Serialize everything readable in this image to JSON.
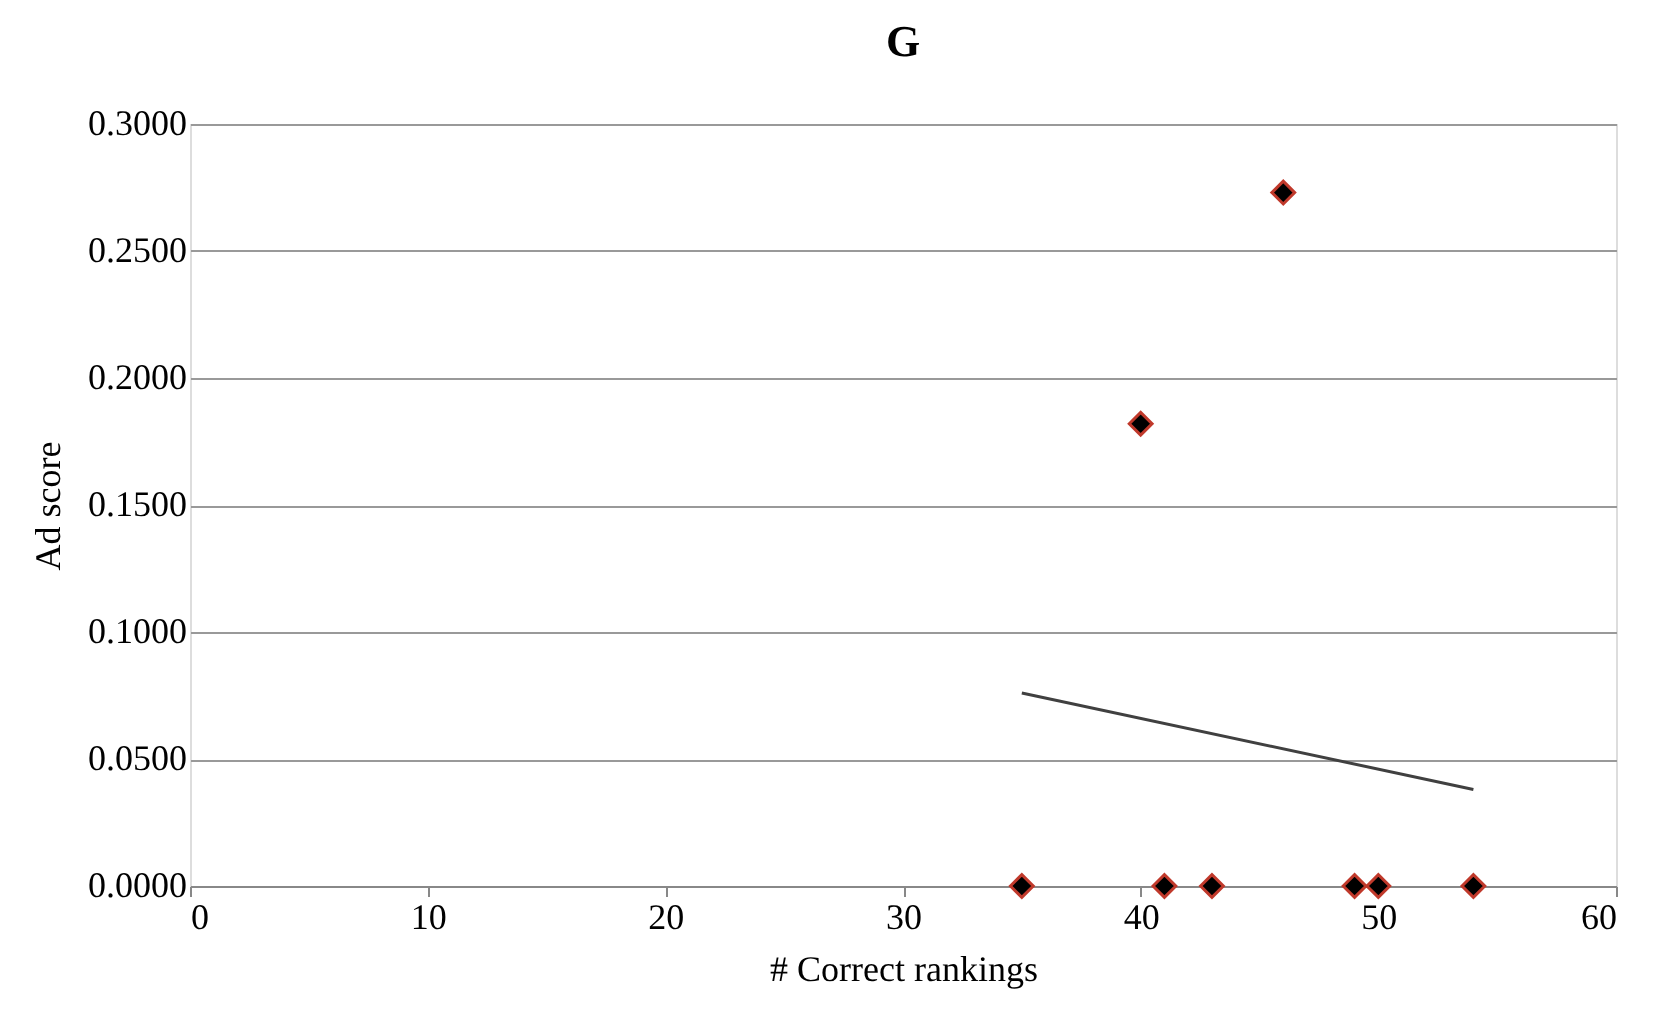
{
  "chart_data": {
    "type": "scatter",
    "title": "G",
    "xlabel": "# Correct rankings",
    "ylabel": "Ad score",
    "xlim": [
      0,
      60
    ],
    "xticks": [
      0,
      10,
      20,
      30,
      40,
      50,
      60
    ],
    "ylim": [
      0,
      0.3
    ],
    "yticks": [
      {
        "value": 0,
        "label": "0.0000"
      },
      {
        "value": 0.05,
        "label": "0.0500"
      },
      {
        "value": 0.1,
        "label": "0.1000"
      },
      {
        "value": 0.15,
        "label": "0.1500"
      },
      {
        "value": 0.2,
        "label": "0.2000"
      },
      {
        "value": 0.25,
        "label": "0.2500"
      },
      {
        "value": 0.3,
        "label": "0.3000"
      }
    ],
    "grid": "y",
    "series": [
      {
        "color": "#000000",
        "marker": "diamond",
        "x": [
          35,
          40,
          41,
          43,
          46,
          49,
          50,
          54
        ],
        "values": [
          0,
          0.182,
          0,
          0,
          0.273,
          0,
          0,
          0
        ]
      },
      {
        "type": "line",
        "color": "#404040",
        "x": [
          35,
          54
        ],
        "values": [
          0.076,
          0.038
        ],
        "marker": "none",
        "line_style": "solid"
      }
    ]
  }
}
